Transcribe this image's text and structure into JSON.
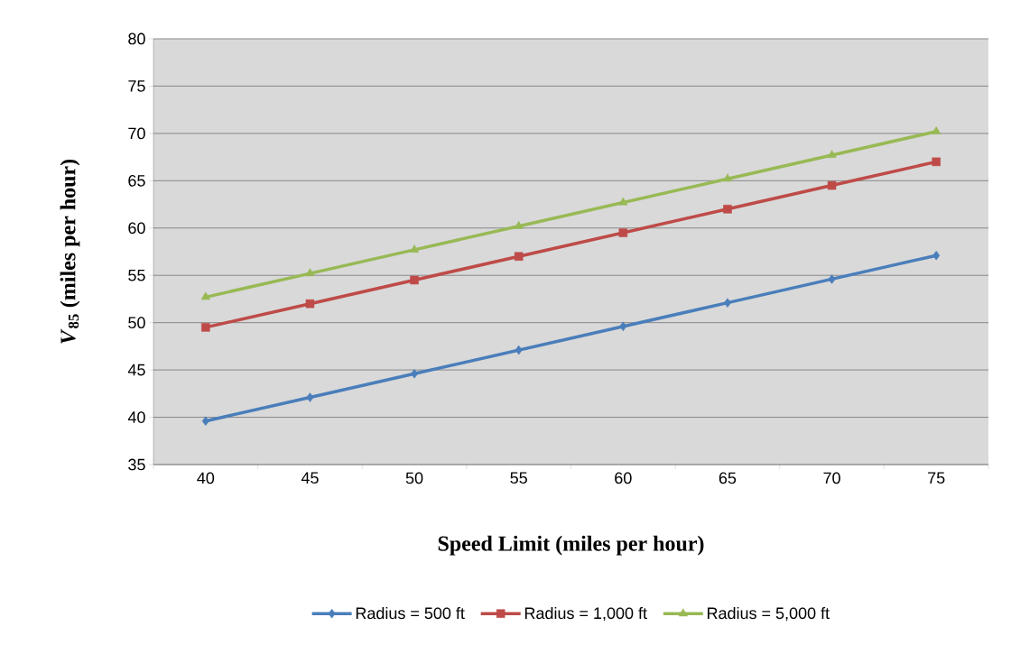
{
  "chart_data": {
    "type": "line",
    "xlabel": "Speed Limit (miles per hour)",
    "ylabel": "*V*$_{85}$ (miles per hour)",
    "categories": [
      "40",
      "45",
      "50",
      "55",
      "60",
      "65",
      "70",
      "75"
    ],
    "series": [
      {
        "name": "Radius = 500 ft",
        "color": "#4a7ebb",
        "marker": "diamond",
        "values": [
          39.6,
          42.1,
          44.6,
          47.1,
          49.6,
          52.1,
          54.6,
          57.1
        ]
      },
      {
        "name": "Radius = 1,000 ft",
        "color": "#be4b48",
        "marker": "square",
        "values": [
          49.5,
          52.0,
          54.5,
          57.0,
          59.5,
          62.0,
          64.5,
          67.0
        ]
      },
      {
        "name": "Radius = 5,000 ft",
        "color": "#98b954",
        "marker": "triangle",
        "values": [
          52.7,
          55.2,
          57.7,
          60.2,
          62.7,
          65.2,
          67.7,
          70.2
        ]
      }
    ],
    "ylim": [
      35,
      80
    ],
    "yticks": [
      35,
      40,
      45,
      50,
      55,
      60,
      65,
      70,
      75,
      80
    ],
    "grid": "y",
    "legend": "bottom"
  }
}
